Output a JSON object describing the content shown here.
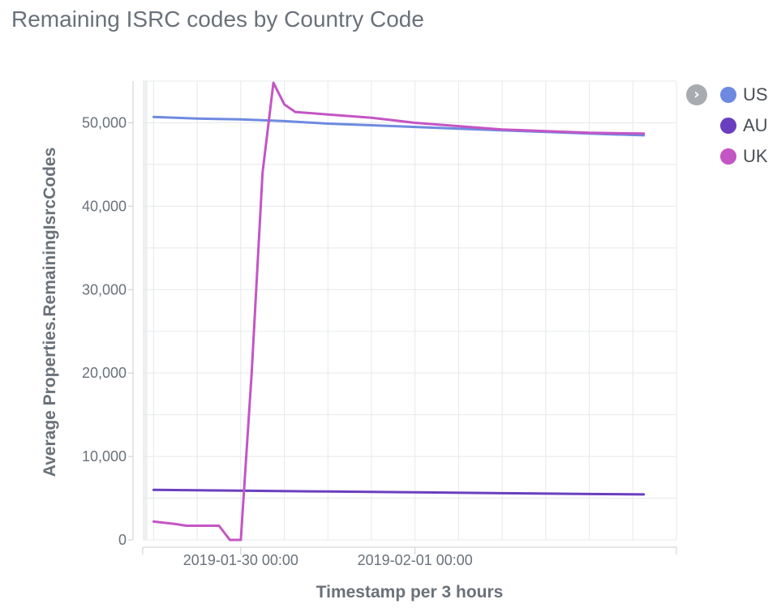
{
  "chart_data": {
    "type": "line",
    "title": "Remaining ISRC codes by Country Code",
    "xlabel": "Timestamp per 3 hours",
    "ylabel": "Average Properties.RemainingIsrcCodes",
    "x_start": "2019-01-28 21:00",
    "x_end": "2019-02-04 00:00",
    "x_tick_labels": [
      {
        "label": "2019-01-30 00:00",
        "x": "2019-01-30 00:00"
      },
      {
        "label": "2019-02-01 00:00",
        "x": "2019-02-01 00:00"
      }
    ],
    "y_ticks": [
      0,
      10000,
      20000,
      30000,
      40000,
      50000
    ],
    "y_tick_labels": [
      "0",
      "10,000",
      "20,000",
      "30,000",
      "40,000",
      "50,000"
    ],
    "ylim": [
      0,
      55000
    ],
    "grid": true,
    "legend_position": "top-right",
    "series": [
      {
        "name": "US",
        "color": "#6e8ae0",
        "points": [
          {
            "x": "2019-01-29 00:00",
            "y": 50700
          },
          {
            "x": "2019-01-29 12:00",
            "y": 50500
          },
          {
            "x": "2019-01-30 00:00",
            "y": 50400
          },
          {
            "x": "2019-01-30 12:00",
            "y": 50200
          },
          {
            "x": "2019-01-31 00:00",
            "y": 49900
          },
          {
            "x": "2019-01-31 12:00",
            "y": 49700
          },
          {
            "x": "2019-02-01 00:00",
            "y": 49500
          },
          {
            "x": "2019-02-01 12:00",
            "y": 49300
          },
          {
            "x": "2019-02-02 00:00",
            "y": 49100
          },
          {
            "x": "2019-02-02 12:00",
            "y": 48900
          },
          {
            "x": "2019-02-03 00:00",
            "y": 48700
          },
          {
            "x": "2019-02-03 15:00",
            "y": 48500
          }
        ]
      },
      {
        "name": "AU",
        "color": "#6a3fbf",
        "points": [
          {
            "x": "2019-01-29 00:00",
            "y": 6000
          },
          {
            "x": "2019-01-30 00:00",
            "y": 5900
          },
          {
            "x": "2019-01-31 00:00",
            "y": 5800
          },
          {
            "x": "2019-02-01 00:00",
            "y": 5700
          },
          {
            "x": "2019-02-02 00:00",
            "y": 5600
          },
          {
            "x": "2019-02-03 00:00",
            "y": 5500
          },
          {
            "x": "2019-02-03 15:00",
            "y": 5450
          }
        ]
      },
      {
        "name": "UK",
        "color": "#c455c4",
        "points": [
          {
            "x": "2019-01-29 00:00",
            "y": 2200
          },
          {
            "x": "2019-01-29 06:00",
            "y": 1900
          },
          {
            "x": "2019-01-29 09:00",
            "y": 1700
          },
          {
            "x": "2019-01-29 18:00",
            "y": 1700
          },
          {
            "x": "2019-01-29 21:00",
            "y": 0
          },
          {
            "x": "2019-01-30 00:00",
            "y": 0
          },
          {
            "x": "2019-01-30 03:00",
            "y": 20000
          },
          {
            "x": "2019-01-30 06:00",
            "y": 44000
          },
          {
            "x": "2019-01-30 09:00",
            "y": 54800
          },
          {
            "x": "2019-01-30 12:00",
            "y": 52200
          },
          {
            "x": "2019-01-30 15:00",
            "y": 51300
          },
          {
            "x": "2019-01-31 00:00",
            "y": 51000
          },
          {
            "x": "2019-01-31 12:00",
            "y": 50600
          },
          {
            "x": "2019-02-01 00:00",
            "y": 50000
          },
          {
            "x": "2019-02-01 12:00",
            "y": 49600
          },
          {
            "x": "2019-02-02 00:00",
            "y": 49200
          },
          {
            "x": "2019-02-02 12:00",
            "y": 49000
          },
          {
            "x": "2019-02-03 00:00",
            "y": 48800
          },
          {
            "x": "2019-02-03 15:00",
            "y": 48700
          }
        ]
      }
    ]
  }
}
